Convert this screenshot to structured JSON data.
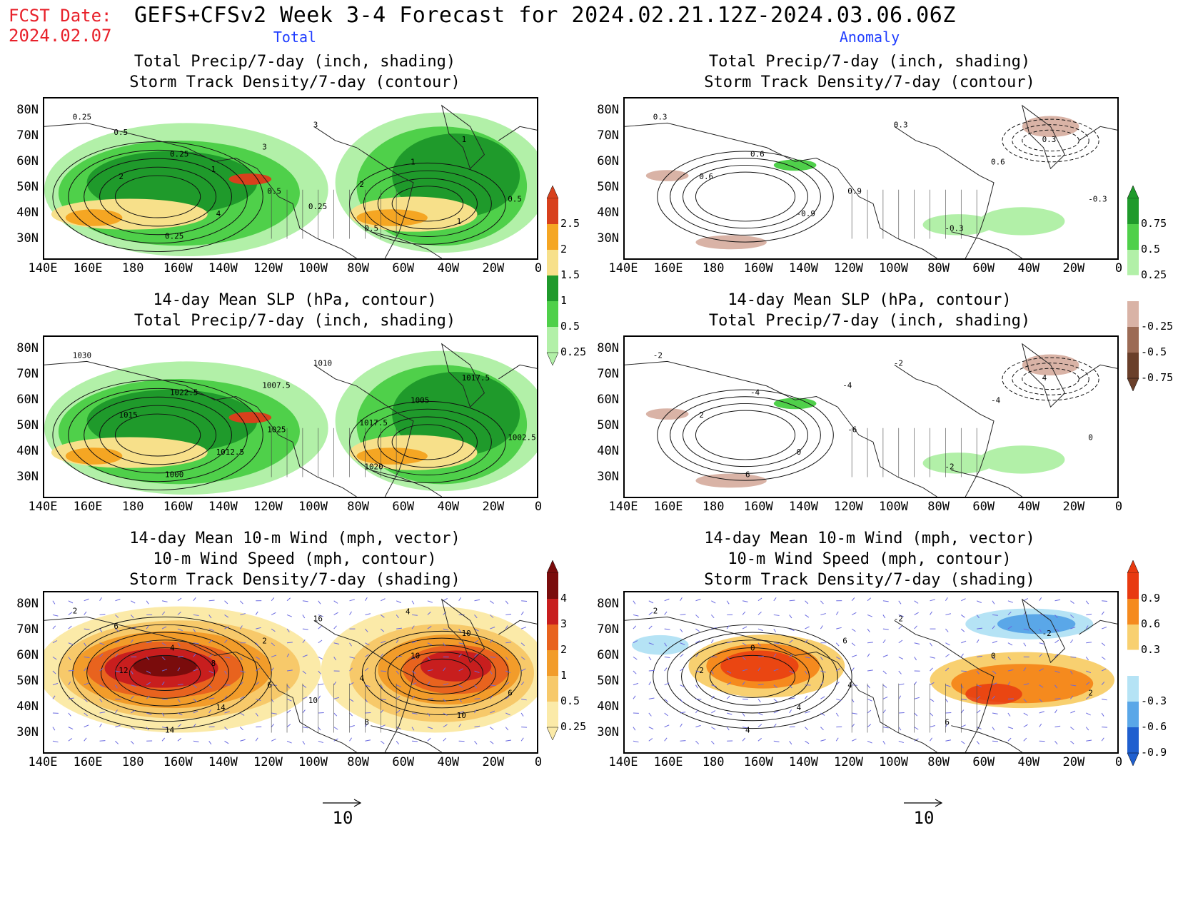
{
  "header": {
    "fcst_label": "FCST Date:",
    "fcst_date": "2024.02.07",
    "title": "GEFS+CFSv2 Week 3-4 Forecast for 2024.02.21.12Z-2024.03.06.06Z",
    "col_total": "Total",
    "col_anomaly": "Anomaly"
  },
  "panels": {
    "p1": [
      "Total Precip/7-day (inch, shading)",
      "Storm Track Density/7-day (contour)"
    ],
    "p2": [
      "Total Precip/7-day (inch, shading)",
      "Storm Track Density/7-day (contour)"
    ],
    "p3": [
      "14-day Mean SLP (hPa, contour)",
      "Total Precip/7-day (inch, shading)"
    ],
    "p4": [
      "14-day Mean SLP (hPa, contour)",
      "Total Precip/7-day (inch, shading)"
    ],
    "p5": [
      "14-day Mean 10-m Wind (mph, vector)",
      "10-m Wind Speed (mph, contour)",
      "Storm Track Density/7-day (shading)"
    ],
    "p6": [
      "14-day Mean 10-m Wind (mph, vector)",
      "10-m Wind Speed (mph, contour)",
      "Storm Track Density/7-day (shading)"
    ]
  },
  "axes": {
    "lat_labels": [
      "80N",
      "70N",
      "60N",
      "50N",
      "40N",
      "30N"
    ],
    "lon_labels": [
      "140E",
      "160E",
      "180",
      "160W",
      "140W",
      "120W",
      "100W",
      "80W",
      "60W",
      "40W",
      "20W",
      "0"
    ]
  },
  "colorbars": {
    "precip_total": {
      "labels": [
        "2.5",
        "2",
        "1.5",
        "1",
        "0.5",
        "0.25"
      ],
      "colors": [
        "#d8401c",
        "#f5a623",
        "#f7e08a",
        "#1f9a2b",
        "#4fd04a",
        "#b2f0a8"
      ]
    },
    "precip_anom": {
      "labels": [
        "0.75",
        "0.5",
        "0.25",
        "-0.25",
        "-0.5",
        "-0.75"
      ],
      "colors": [
        "#1f9a2b",
        "#4fd04a",
        "#b2f0a8",
        "#ffffff",
        "#d9b3a6",
        "#9c6b55",
        "#6a3f2a"
      ]
    },
    "storm_total": {
      "labels": [
        "4",
        "3",
        "2",
        "1",
        "0.5",
        "0.25"
      ],
      "colors": [
        "#7a0c0c",
        "#c81e1e",
        "#e8631e",
        "#f29c2a",
        "#f7c96a",
        "#fbeaa8"
      ]
    },
    "storm_anom": {
      "labels": [
        "0.9",
        "0.6",
        "0.3",
        "-0.3",
        "-0.6",
        "-0.9"
      ],
      "colors": [
        "#e83a10",
        "#f58a1e",
        "#f8d070",
        "#ffffff",
        "#b5e3f5",
        "#5aa7e8",
        "#1f5fcf"
      ]
    }
  },
  "contour_labels": {
    "p1": [
      "0.25",
      "0.25",
      "0.5",
      "0.5",
      "1",
      "2",
      "4",
      "3",
      "1",
      "0.5",
      "0.25",
      "3",
      "2",
      "1",
      "0.5",
      "1",
      "0.25"
    ],
    "p2": [
      "0.3",
      "0.6",
      "0.9",
      "-0.3",
      "0.3",
      "0.6",
      "-0.9",
      "0.3",
      "0.6",
      "-0.3"
    ],
    "p3": [
      "1030",
      "1022.5",
      "1025",
      "1020",
      "1017.5",
      "1015",
      "1012.5",
      "1010",
      "1005",
      "1002.5",
      "1000",
      "1007.5",
      "1017.5"
    ],
    "p4": [
      "-2",
      "-4",
      "-6",
      "-2",
      "4",
      "2",
      "0",
      "-2",
      "-4",
      "0",
      "6",
      "-4"
    ],
    "p5": [
      "2",
      "4",
      "6",
      "8",
      "10",
      "12",
      "14",
      "16",
      "10",
      "6",
      "14",
      "2",
      "4",
      "10",
      "6",
      "8",
      "10",
      "4"
    ],
    "p6": [
      "2",
      "0",
      "4",
      "6",
      "-2",
      "2",
      "4",
      "-2",
      "0",
      "2",
      "4",
      "6"
    ]
  },
  "wind_scale": {
    "p5": "10",
    "p6": "10"
  }
}
